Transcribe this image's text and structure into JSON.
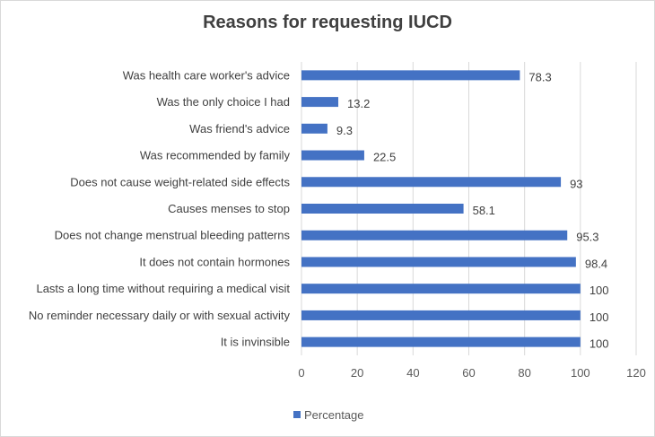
{
  "chart_data": {
    "type": "bar",
    "orientation": "horizontal",
    "title": "Reasons for requesting IUCD",
    "categories": [
      "Was health care worker's advice",
      "Was the only choice I had",
      "Was friend's advice",
      "Was recommended by family",
      "Does not cause weight-related side effects",
      "Causes menses to stop",
      "Does not change menstrual bleeding patterns",
      "It does not contain hormones",
      "Lasts a long time without requiring a medical visit",
      "No reminder necessary daily or with sexual activity",
      "It is invinsible"
    ],
    "series": [
      {
        "name": "Percentage",
        "values": [
          78.3,
          13.2,
          9.3,
          22.5,
          93,
          58.1,
          95.3,
          98.4,
          100,
          100,
          100
        ]
      }
    ],
    "xlim": [
      0,
      120
    ],
    "xticks": [
      0,
      20,
      40,
      60,
      80,
      100,
      120
    ],
    "grid": true,
    "legend_position": "bottom",
    "colors": {
      "bar": "#4472c4",
      "grid": "#d9d9d9",
      "text": "#404040"
    }
  }
}
